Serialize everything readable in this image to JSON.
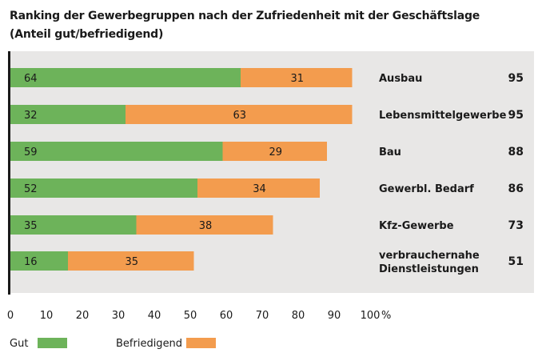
{
  "chart_data": {
    "type": "bar",
    "orientation": "horizontal",
    "stacked": true,
    "title": "Ranking der Gewerbegruppen nach der Zufriedenheit mit der Geschäftslage",
    "subtitle": "(Anteil gut/befriedigend)",
    "categories": [
      [
        "Ausbau"
      ],
      [
        "Lebensmittelgewerbe"
      ],
      [
        "Bau"
      ],
      [
        "Gewerbl. Bedarf"
      ],
      [
        "Kfz-Gewerbe"
      ],
      [
        "verbrauchernahe",
        "Dienstleistungen"
      ]
    ],
    "totals": [
      "95",
      "95",
      "88",
      "86",
      "73",
      "51"
    ],
    "series": [
      {
        "name": "Gut",
        "color": "#6db35a",
        "values": [
          64,
          32,
          59,
          52,
          35,
          16
        ]
      },
      {
        "name": "Befriedigend",
        "color": "#f39c4e",
        "values": [
          31,
          63,
          29,
          34,
          38,
          35
        ]
      }
    ],
    "xlim": [
      0,
      100
    ],
    "xticks": [
      "0",
      "10",
      "20",
      "30",
      "40",
      "50",
      "60",
      "70",
      "80",
      "90",
      "100"
    ],
    "xunit": "%",
    "legend_position": "bottom-left"
  }
}
